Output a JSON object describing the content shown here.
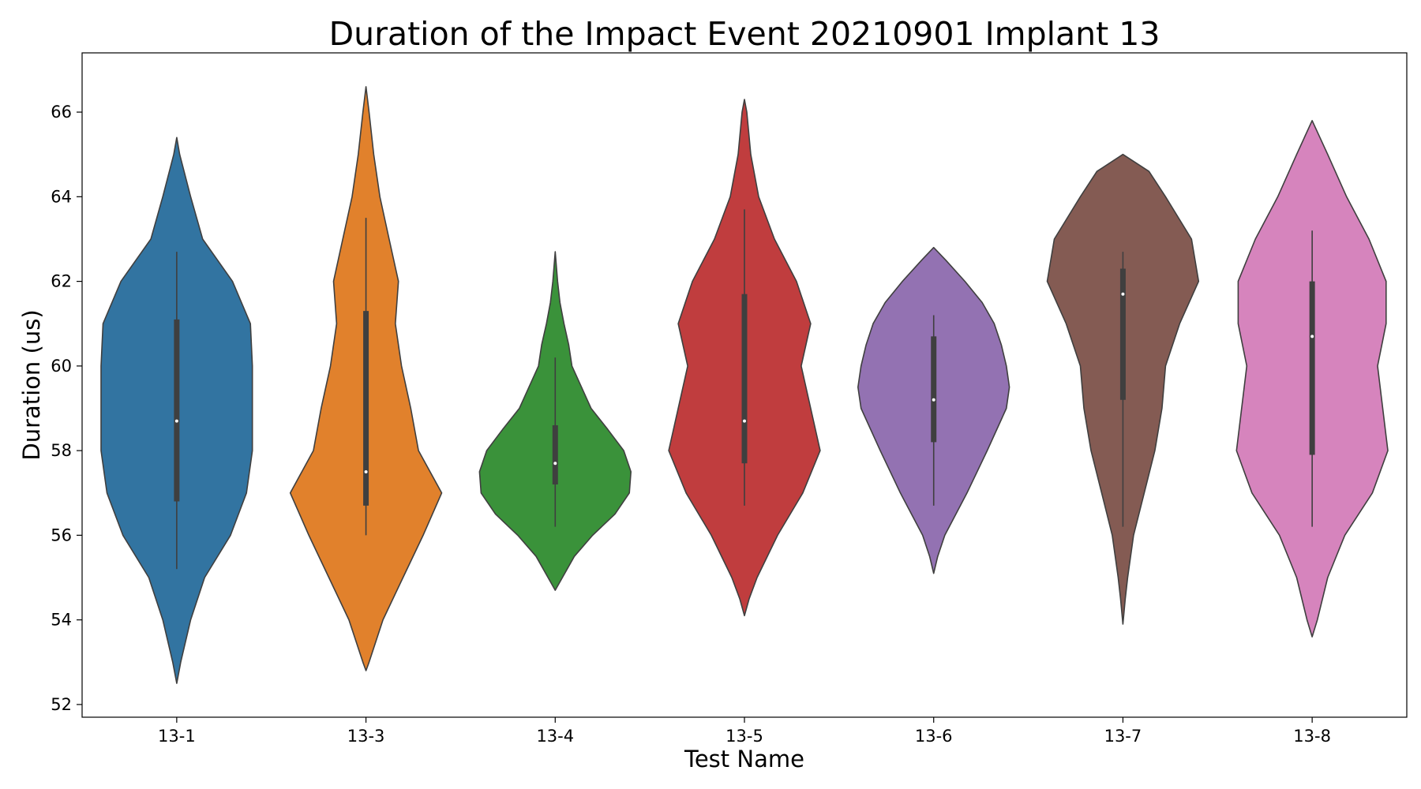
{
  "chart_data": {
    "type": "violin",
    "title": "Duration of the Impact Event 20210901 Implant 13",
    "xlabel": "Test Name",
    "ylabel": "Duration (us)",
    "ylim": [
      51.7,
      67.4
    ],
    "yticks": [
      52,
      54,
      56,
      58,
      60,
      62,
      64,
      66
    ],
    "grid": false,
    "categories": [
      "13-1",
      "13-3",
      "13-4",
      "13-5",
      "13-6",
      "13-7",
      "13-8"
    ],
    "colors": [
      "#3274a1",
      "#e1812c",
      "#3a923a",
      "#c03d3e",
      "#9372b2",
      "#845b53",
      "#d684bd"
    ],
    "series": [
      {
        "category": "13-1",
        "whisker": [
          55.2,
          62.7
        ],
        "q1": 56.8,
        "median": 58.7,
        "q3": 61.1,
        "density": [
          [
            52.5,
            0
          ],
          [
            53.0,
            2
          ],
          [
            54.0,
            7
          ],
          [
            55.0,
            14
          ],
          [
            56.0,
            27
          ],
          [
            57.0,
            35
          ],
          [
            58.0,
            38
          ],
          [
            59.0,
            38
          ],
          [
            60.0,
            38
          ],
          [
            61.0,
            37
          ],
          [
            62.0,
            28
          ],
          [
            63.0,
            13
          ],
          [
            64.0,
            7
          ],
          [
            65.0,
            1.5
          ],
          [
            65.4,
            0
          ]
        ]
      },
      {
        "category": "13-3",
        "whisker": [
          56.0,
          63.5
        ],
        "q1": 56.7,
        "median": 57.5,
        "q3": 61.3,
        "density": [
          [
            52.8,
            0
          ],
          [
            53.0,
            2
          ],
          [
            54.0,
            11
          ],
          [
            55.0,
            24
          ],
          [
            56.0,
            37
          ],
          [
            57.0,
            49
          ],
          [
            58.0,
            34
          ],
          [
            59.0,
            29
          ],
          [
            60.0,
            23
          ],
          [
            61.0,
            19
          ],
          [
            62.0,
            21
          ],
          [
            63.0,
            15
          ],
          [
            64.0,
            9
          ],
          [
            65.0,
            5
          ],
          [
            66.0,
            2
          ],
          [
            66.6,
            0
          ]
        ]
      },
      {
        "category": "13-4",
        "whisker": [
          56.2,
          60.2
        ],
        "q1": 57.2,
        "median": 57.7,
        "q3": 58.6,
        "density": [
          [
            54.7,
            0
          ],
          [
            55.0,
            9
          ],
          [
            55.5,
            24
          ],
          [
            56.0,
            47
          ],
          [
            56.5,
            75
          ],
          [
            57.0,
            93
          ],
          [
            57.5,
            95
          ],
          [
            58.0,
            86
          ],
          [
            58.5,
            66
          ],
          [
            59.0,
            45
          ],
          [
            59.5,
            33
          ],
          [
            60.0,
            21
          ],
          [
            60.5,
            17
          ],
          [
            61.0,
            11
          ],
          [
            61.5,
            6
          ],
          [
            62.0,
            3
          ],
          [
            62.7,
            0
          ]
        ]
      },
      {
        "category": "13-5",
        "whisker": [
          56.7,
          63.7
        ],
        "q1": 57.7,
        "median": 58.7,
        "q3": 61.7,
        "density": [
          [
            54.1,
            0
          ],
          [
            54.5,
            3
          ],
          [
            55.0,
            8
          ],
          [
            56.0,
            21
          ],
          [
            57.0,
            37
          ],
          [
            58.0,
            48
          ],
          [
            59.0,
            42
          ],
          [
            60.0,
            36
          ],
          [
            61.0,
            42
          ],
          [
            62.0,
            33
          ],
          [
            63.0,
            19
          ],
          [
            64.0,
            9
          ],
          [
            65.0,
            4
          ],
          [
            66.0,
            1.5
          ],
          [
            66.3,
            0
          ]
        ]
      },
      {
        "category": "13-6",
        "whisker": [
          56.7,
          61.2
        ],
        "q1": 58.2,
        "median": 59.2,
        "q3": 60.7,
        "density": [
          [
            55.1,
            0
          ],
          [
            55.5,
            4
          ],
          [
            56.0,
            11
          ],
          [
            57.0,
            33
          ],
          [
            58.0,
            53
          ],
          [
            59.0,
            72
          ],
          [
            59.5,
            75
          ],
          [
            60.0,
            72
          ],
          [
            60.5,
            67
          ],
          [
            61.0,
            60
          ],
          [
            61.5,
            48
          ],
          [
            62.0,
            31
          ],
          [
            62.5,
            12
          ],
          [
            62.8,
            0
          ]
        ]
      },
      {
        "category": "13-7",
        "whisker": [
          56.2,
          62.7
        ],
        "q1": 59.2,
        "median": 61.7,
        "q3": 62.3,
        "density": [
          [
            53.9,
            0
          ],
          [
            54.5,
            2
          ],
          [
            55.0,
            4
          ],
          [
            56.0,
            9
          ],
          [
            57.0,
            18
          ],
          [
            58.0,
            27
          ],
          [
            59.0,
            33
          ],
          [
            60.0,
            36
          ],
          [
            61.0,
            48
          ],
          [
            62.0,
            64
          ],
          [
            63.0,
            58
          ],
          [
            64.0,
            36
          ],
          [
            64.6,
            22
          ],
          [
            65.0,
            0
          ]
        ]
      },
      {
        "category": "13-8",
        "whisker": [
          56.2,
          63.2
        ],
        "q1": 57.9,
        "median": 60.7,
        "q3": 62.0,
        "density": [
          [
            53.6,
            0
          ],
          [
            54.0,
            3
          ],
          [
            55.0,
            9
          ],
          [
            56.0,
            19
          ],
          [
            57.0,
            35
          ],
          [
            58.0,
            44
          ],
          [
            59.0,
            41
          ],
          [
            60.0,
            38
          ],
          [
            61.0,
            43
          ],
          [
            62.0,
            43
          ],
          [
            63.0,
            33
          ],
          [
            64.0,
            20
          ],
          [
            65.0,
            9
          ],
          [
            65.8,
            0
          ]
        ]
      }
    ]
  }
}
